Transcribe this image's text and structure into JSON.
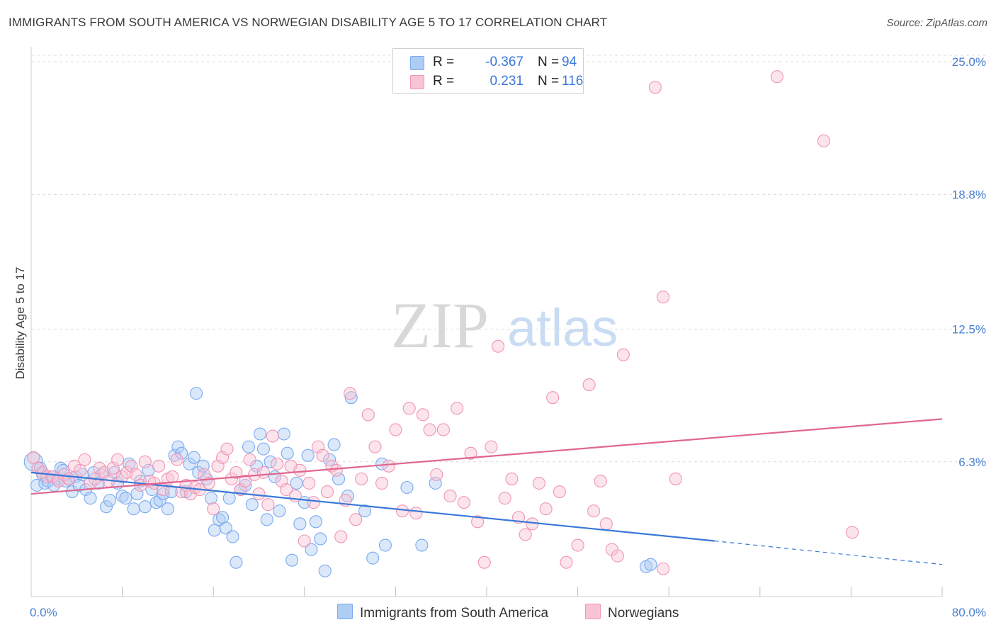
{
  "title": "IMMIGRANTS FROM SOUTH AMERICA VS NORWEGIAN DISABILITY AGE 5 TO 17 CORRELATION CHART",
  "source": "Source: ZipAtlas.com",
  "watermark": {
    "zip": "ZIP",
    "atlas": "atlas"
  },
  "legend_top": [
    {
      "swatch_color": "#aecdf5",
      "border_color": "#7aaaf0",
      "r_label": "R =",
      "r_value": "-0.367",
      "n_label": "N =",
      "n_value": "94"
    },
    {
      "swatch_color": "#f8c4d4",
      "border_color": "#f095b3",
      "r_label": "R =",
      "r_value": "0.231",
      "n_label": "N =",
      "n_value": "116"
    }
  ],
  "legend_bottom": [
    {
      "label": "Immigrants from South America",
      "color": "#aecdf5",
      "border": "#7aaaf0"
    },
    {
      "label": "Norwegians",
      "color": "#f8c4d4",
      "border": "#f095b3"
    }
  ],
  "chart_data": {
    "type": "scatter",
    "xlabel": "",
    "ylabel": "Disability Age 5 to 17",
    "xlim": [
      0,
      80
    ],
    "ylim": [
      0,
      25.5
    ],
    "x_tick_labels": [
      "0.0%",
      "80.0%"
    ],
    "y_ticks": [
      6.3,
      12.5,
      18.8,
      25.0
    ],
    "y_tick_labels": [
      "6.3%",
      "12.5%",
      "18.8%",
      "25.0%"
    ],
    "grid": "horizontal dashed",
    "series": [
      {
        "name": "Immigrants from South America",
        "color": "#7aaaf0",
        "fill": "#aecdf5",
        "trend": {
          "x0": 0,
          "y0": 5.8,
          "x1": 60,
          "y1": 2.6,
          "dashed_to_x": 80,
          "dashed_to_y": 1.5,
          "color": "#3a78d8"
        },
        "points": [
          [
            0.2,
            6.3
          ],
          [
            0.5,
            5.2
          ],
          [
            0.8,
            6.0
          ],
          [
            1.0,
            5.7
          ],
          [
            1.2,
            5.3
          ],
          [
            1.5,
            5.4
          ],
          [
            1.8,
            5.6
          ],
          [
            2.0,
            5.2
          ],
          [
            2.3,
            5.5
          ],
          [
            2.6,
            6.0
          ],
          [
            2.8,
            5.9
          ],
          [
            3.0,
            5.4
          ],
          [
            3.3,
            5.5
          ],
          [
            3.6,
            4.9
          ],
          [
            3.9,
            5.6
          ],
          [
            4.2,
            5.2
          ],
          [
            4.5,
            5.7
          ],
          [
            4.8,
            5.0
          ],
          [
            5.2,
            4.6
          ],
          [
            5.5,
            5.8
          ],
          [
            5.9,
            5.3
          ],
          [
            6.2,
            5.7
          ],
          [
            6.6,
            4.2
          ],
          [
            6.9,
            4.5
          ],
          [
            7.3,
            5.8
          ],
          [
            7.6,
            5.3
          ],
          [
            8.0,
            4.7
          ],
          [
            8.3,
            4.6
          ],
          [
            8.6,
            6.2
          ],
          [
            9.0,
            4.1
          ],
          [
            9.3,
            4.8
          ],
          [
            9.6,
            5.4
          ],
          [
            10.0,
            4.2
          ],
          [
            10.3,
            5.9
          ],
          [
            10.6,
            5.0
          ],
          [
            11.0,
            4.4
          ],
          [
            11.3,
            4.5
          ],
          [
            11.6,
            4.8
          ],
          [
            12.0,
            4.1
          ],
          [
            12.3,
            4.9
          ],
          [
            12.6,
            6.6
          ],
          [
            12.9,
            7.0
          ],
          [
            13.2,
            6.7
          ],
          [
            13.6,
            4.9
          ],
          [
            13.9,
            6.2
          ],
          [
            14.3,
            6.5
          ],
          [
            14.5,
            9.5
          ],
          [
            14.7,
            5.8
          ],
          [
            15.1,
            6.1
          ],
          [
            15.4,
            5.5
          ],
          [
            15.8,
            4.6
          ],
          [
            16.1,
            3.1
          ],
          [
            16.5,
            3.6
          ],
          [
            16.8,
            3.7
          ],
          [
            17.1,
            3.2
          ],
          [
            17.4,
            4.6
          ],
          [
            17.7,
            2.8
          ],
          [
            18.0,
            1.6
          ],
          [
            18.4,
            5.0
          ],
          [
            18.8,
            5.2
          ],
          [
            19.1,
            7.0
          ],
          [
            19.4,
            4.3
          ],
          [
            19.8,
            6.1
          ],
          [
            20.1,
            7.6
          ],
          [
            20.4,
            6.9
          ],
          [
            20.7,
            3.6
          ],
          [
            21.0,
            6.3
          ],
          [
            21.4,
            5.6
          ],
          [
            21.8,
            4.0
          ],
          [
            22.2,
            7.6
          ],
          [
            22.5,
            6.7
          ],
          [
            22.9,
            1.7
          ],
          [
            23.3,
            5.3
          ],
          [
            23.6,
            3.4
          ],
          [
            24.0,
            4.4
          ],
          [
            24.3,
            6.6
          ],
          [
            24.6,
            2.2
          ],
          [
            25.0,
            3.5
          ],
          [
            25.4,
            2.7
          ],
          [
            25.8,
            1.2
          ],
          [
            26.2,
            6.4
          ],
          [
            26.6,
            7.1
          ],
          [
            27.0,
            5.5
          ],
          [
            27.8,
            4.7
          ],
          [
            28.1,
            9.3
          ],
          [
            30.0,
            1.8
          ],
          [
            31.1,
            2.4
          ],
          [
            33.0,
            5.1
          ],
          [
            34.3,
            2.4
          ],
          [
            54.0,
            1.4
          ],
          [
            54.4,
            1.5
          ],
          [
            35.5,
            5.3
          ],
          [
            29.3,
            4.0
          ],
          [
            30.8,
            6.2
          ]
        ]
      },
      {
        "name": "Norwegians",
        "color": "#f095b3",
        "fill": "#f8c4d4",
        "trend": {
          "x0": 0,
          "y0": 4.8,
          "x1": 80,
          "y1": 8.3,
          "color": "#e06690"
        },
        "points": [
          [
            0.2,
            6.5
          ],
          [
            0.6,
            6.0
          ],
          [
            1.0,
            5.8
          ],
          [
            1.4,
            5.6
          ],
          [
            1.9,
            5.6
          ],
          [
            2.4,
            5.4
          ],
          [
            2.9,
            5.7
          ],
          [
            3.3,
            5.5
          ],
          [
            3.8,
            6.1
          ],
          [
            4.3,
            5.9
          ],
          [
            4.7,
            6.4
          ],
          [
            5.2,
            5.3
          ],
          [
            5.6,
            5.5
          ],
          [
            6.0,
            6.0
          ],
          [
            6.4,
            5.8
          ],
          [
            6.8,
            5.4
          ],
          [
            7.2,
            6.0
          ],
          [
            7.6,
            6.4
          ],
          [
            8.0,
            5.6
          ],
          [
            8.4,
            5.8
          ],
          [
            8.8,
            6.1
          ],
          [
            9.2,
            5.7
          ],
          [
            9.6,
            5.2
          ],
          [
            10.0,
            6.3
          ],
          [
            10.4,
            5.4
          ],
          [
            10.8,
            5.3
          ],
          [
            11.2,
            6.1
          ],
          [
            11.6,
            5.0
          ],
          [
            12.0,
            5.5
          ],
          [
            12.4,
            5.6
          ],
          [
            12.8,
            6.4
          ],
          [
            13.2,
            4.9
          ],
          [
            13.6,
            5.2
          ],
          [
            14.0,
            4.8
          ],
          [
            14.4,
            5.1
          ],
          [
            14.8,
            5.0
          ],
          [
            15.2,
            5.7
          ],
          [
            15.6,
            5.3
          ],
          [
            16.0,
            4.1
          ],
          [
            16.4,
            6.1
          ],
          [
            16.8,
            6.5
          ],
          [
            17.2,
            6.9
          ],
          [
            17.6,
            5.5
          ],
          [
            18.0,
            5.8
          ],
          [
            18.4,
            5.0
          ],
          [
            18.8,
            5.4
          ],
          [
            19.2,
            6.4
          ],
          [
            19.6,
            5.7
          ],
          [
            20.0,
            4.8
          ],
          [
            20.4,
            5.8
          ],
          [
            20.8,
            4.3
          ],
          [
            21.2,
            7.5
          ],
          [
            21.6,
            6.2
          ],
          [
            22.0,
            5.4
          ],
          [
            22.4,
            5.0
          ],
          [
            22.8,
            6.1
          ],
          [
            23.2,
            4.7
          ],
          [
            23.6,
            5.9
          ],
          [
            24.0,
            2.6
          ],
          [
            24.4,
            5.3
          ],
          [
            24.8,
            4.4
          ],
          [
            25.2,
            7.0
          ],
          [
            25.6,
            6.6
          ],
          [
            26.0,
            4.9
          ],
          [
            26.4,
            6.1
          ],
          [
            26.8,
            5.9
          ],
          [
            27.2,
            2.8
          ],
          [
            27.6,
            4.5
          ],
          [
            28.0,
            9.5
          ],
          [
            28.5,
            3.6
          ],
          [
            29.0,
            5.5
          ],
          [
            29.6,
            8.5
          ],
          [
            30.2,
            7.0
          ],
          [
            30.8,
            5.3
          ],
          [
            31.4,
            6.1
          ],
          [
            32.0,
            7.8
          ],
          [
            32.6,
            4.0
          ],
          [
            33.2,
            8.8
          ],
          [
            33.8,
            3.9
          ],
          [
            34.4,
            8.5
          ],
          [
            35.0,
            7.8
          ],
          [
            35.6,
            5.7
          ],
          [
            36.2,
            7.8
          ],
          [
            36.8,
            4.7
          ],
          [
            37.4,
            8.8
          ],
          [
            38.0,
            4.4
          ],
          [
            38.6,
            6.7
          ],
          [
            39.2,
            3.5
          ],
          [
            39.8,
            1.6
          ],
          [
            40.4,
            7.0
          ],
          [
            41.0,
            11.7
          ],
          [
            41.6,
            4.6
          ],
          [
            42.2,
            5.5
          ],
          [
            42.8,
            3.7
          ],
          [
            43.4,
            2.9
          ],
          [
            44.0,
            3.4
          ],
          [
            44.6,
            5.3
          ],
          [
            45.2,
            4.1
          ],
          [
            45.8,
            9.3
          ],
          [
            46.4,
            4.9
          ],
          [
            47.0,
            1.6
          ],
          [
            48.0,
            2.4
          ],
          [
            49.0,
            9.9
          ],
          [
            49.4,
            4.0
          ],
          [
            50.0,
            5.4
          ],
          [
            50.5,
            3.4
          ],
          [
            51.0,
            2.2
          ],
          [
            51.5,
            1.9
          ],
          [
            52.0,
            11.3
          ],
          [
            55.5,
            1.3
          ],
          [
            54.8,
            23.8
          ],
          [
            55.5,
            14.0
          ],
          [
            56.6,
            5.5
          ],
          [
            65.5,
            24.3
          ],
          [
            69.6,
            21.3
          ],
          [
            72.1,
            3.0
          ]
        ]
      }
    ]
  }
}
